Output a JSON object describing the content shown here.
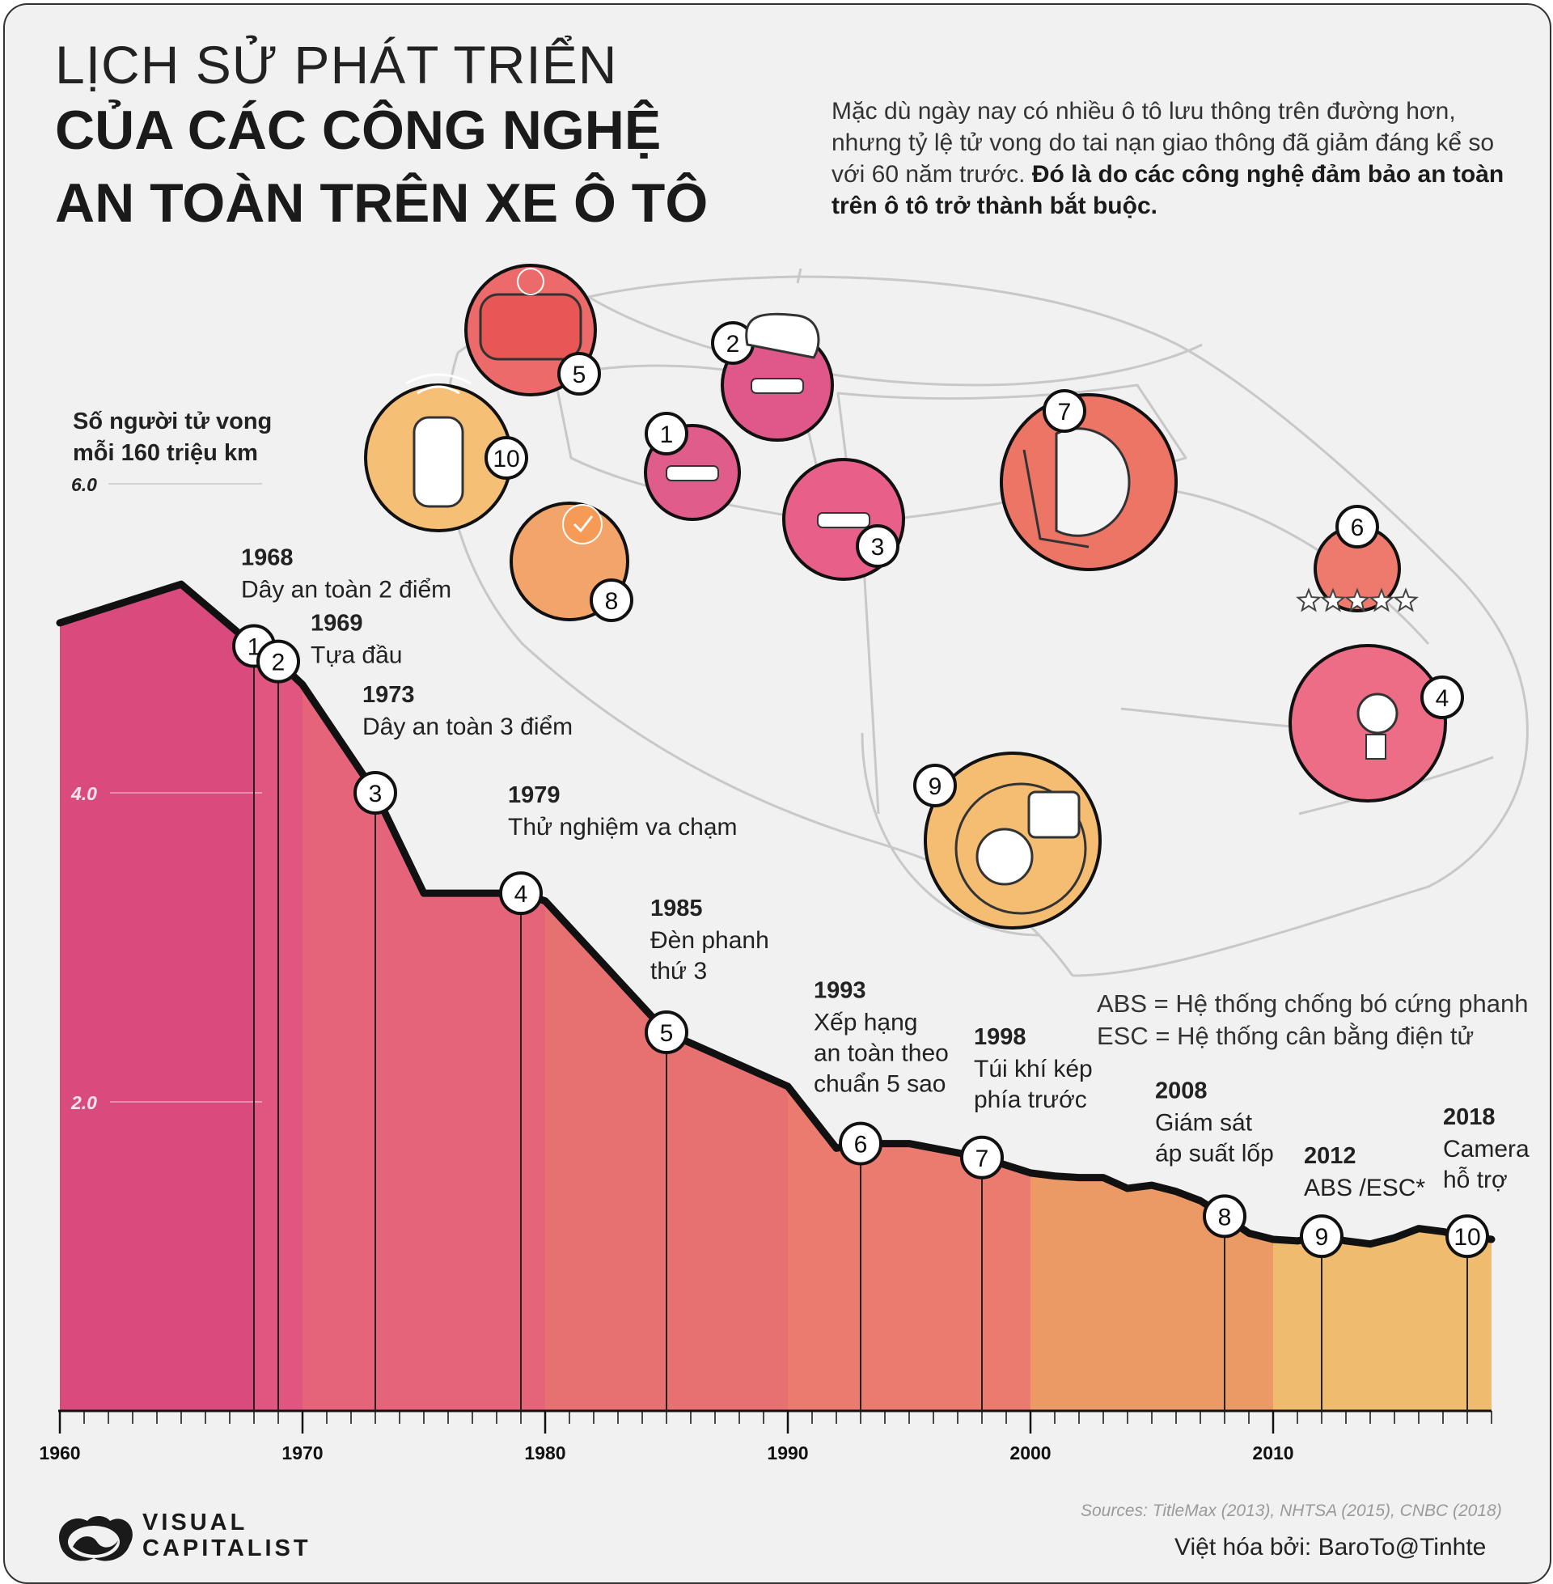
{
  "header": {
    "title_line1": "LỊCH SỬ PHÁT TRIỂN",
    "title_line2": "CỦA CÁC CÔNG NGHỆ",
    "title_line3": "AN TOÀN TRÊN XE Ô TÔ",
    "intro_regular": "Mặc dù ngày nay có nhiều ô tô lưu thông trên đường hơn, nhưng tỷ lệ tử vong do tai nạn giao thông đã giảm đáng kể so với 60 năm trước. ",
    "intro_bold": "Đó là do các công nghệ đảm bảo an toàn trên ô tô trở thành bắt buộc."
  },
  "footer": {
    "logo_line1": "VISUAL",
    "logo_line2": "CAPITALIST",
    "sources": "Sources: TitleMax (2013), NHTSA (2015), CNBC (2018)",
    "credit": "Việt hóa bởi: BaroTo@Tinhte"
  },
  "legend": {
    "abs": "ABS = Hệ thống chống bó cứng phanh",
    "esc": "ESC = Hệ thống cân bằng điện tử"
  },
  "colors": {
    "background": "#f1f1f1",
    "line": "#111111",
    "car_outline": "#c8c8c8",
    "band_colors": [
      "#d94a7d",
      "#e05680",
      "#e66479",
      "#e77071",
      "#ea7b6e",
      "#eb9a66",
      "#efbb6e"
    ]
  },
  "chart_data": {
    "type": "area",
    "title": "",
    "ylabel_line1": "Số người tử vong",
    "ylabel_line2": "mỗi 160 triệu km",
    "xlabel": "",
    "xlim": [
      1960,
      2019
    ],
    "ylim": [
      0,
      6.0
    ],
    "y_ticks": [
      "2.0",
      "4.0",
      "6.0"
    ],
    "x_ticks": [
      "1960",
      "1970",
      "1980",
      "1990",
      "2000",
      "2010"
    ],
    "grid": false,
    "series": [
      {
        "x": [
          1960,
          1965,
          1968,
          1969,
          1970,
          1973,
          1975,
          1979,
          1980,
          1985,
          1990,
          1992,
          1993,
          1995,
          1998,
          2000,
          2001,
          2002,
          2003,
          2004,
          2005,
          2006,
          2007,
          2008,
          2009,
          2010,
          2011,
          2012,
          2013,
          2014,
          2015,
          2016,
          2017,
          2018,
          2019
        ],
        "y": [
          5.1,
          5.35,
          4.95,
          4.85,
          4.7,
          4.0,
          3.35,
          3.35,
          3.3,
          2.45,
          2.1,
          1.7,
          1.73,
          1.73,
          1.64,
          1.54,
          1.52,
          1.51,
          1.51,
          1.44,
          1.46,
          1.42,
          1.36,
          1.26,
          1.15,
          1.11,
          1.1,
          1.13,
          1.1,
          1.08,
          1.12,
          1.18,
          1.16,
          1.13,
          1.11
        ]
      }
    ],
    "milestones": [
      {
        "n": "1",
        "year": "1968",
        "label_lines": [
          "Dây an toàn 2 điểm"
        ]
      },
      {
        "n": "2",
        "year": "1969",
        "label_lines": [
          "Tựa đầu"
        ]
      },
      {
        "n": "3",
        "year": "1973",
        "label_lines": [
          "Dây an toàn 3 điểm"
        ]
      },
      {
        "n": "4",
        "year": "1979",
        "label_lines": [
          "Thử nghiệm va chạm"
        ]
      },
      {
        "n": "5",
        "year": "1985",
        "label_lines": [
          "Đèn phanh",
          "thứ 3"
        ]
      },
      {
        "n": "6",
        "year": "1993",
        "label_lines": [
          "Xếp hạng",
          "an toàn theo",
          "chuẩn 5 sao"
        ]
      },
      {
        "n": "7",
        "year": "1998",
        "label_lines": [
          "Túi khí kép",
          "phía trước"
        ]
      },
      {
        "n": "8",
        "year": "2008",
        "label_lines": [
          "Giám sát",
          "áp suất lốp"
        ]
      },
      {
        "n": "9",
        "year": "2012",
        "label_lines": [
          "ABS /ESC*"
        ]
      },
      {
        "n": "10",
        "year": "2018",
        "label_lines": [
          "Camera",
          "hỗ trợ"
        ]
      }
    ]
  },
  "illustrations": [
    {
      "n": "1",
      "icon": "seatbelt-2pt-icon"
    },
    {
      "n": "2",
      "icon": "headrest-icon"
    },
    {
      "n": "3",
      "icon": "seatbelt-3pt-icon"
    },
    {
      "n": "4",
      "icon": "crash-test-dummy-icon"
    },
    {
      "n": "5",
      "icon": "brake-light-icon"
    },
    {
      "n": "6",
      "icon": "five-star-rating-icon"
    },
    {
      "n": "7",
      "icon": "airbag-icon"
    },
    {
      "n": "8",
      "icon": "tire-pressure-icon"
    },
    {
      "n": "9",
      "icon": "abs-brake-disc-icon"
    },
    {
      "n": "10",
      "icon": "backup-camera-icon"
    }
  ]
}
